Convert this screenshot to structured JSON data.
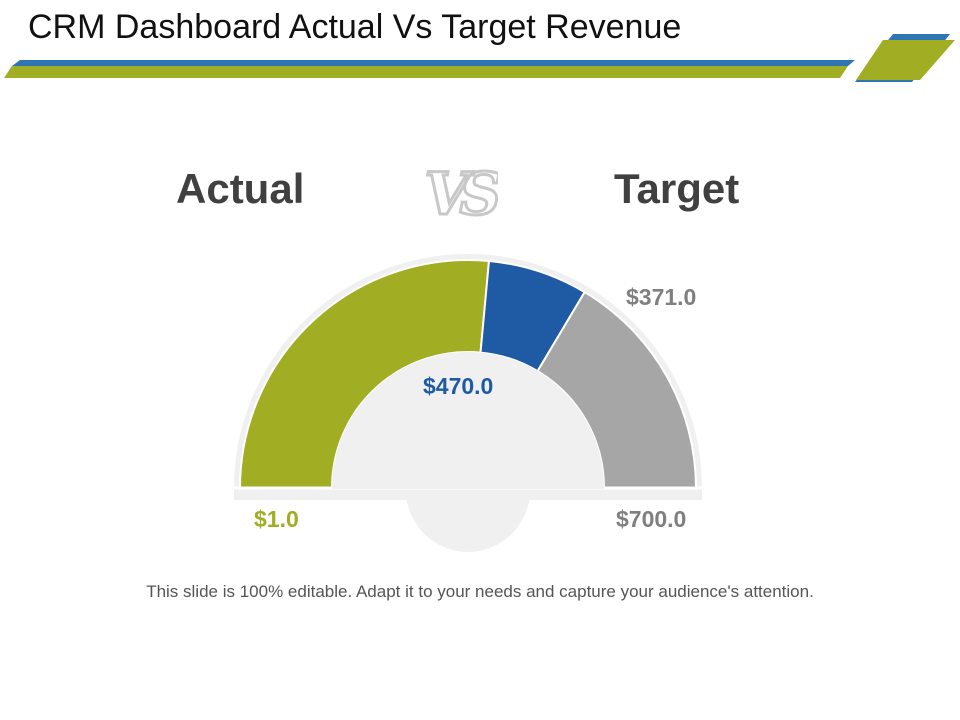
{
  "slide": {
    "title": "CRM Dashboard Actual Vs Target Revenue",
    "footer_text": "This slide is 100% editable. Adapt it to your needs and capture your audience's attention."
  },
  "comparison": {
    "left_label": "Actual",
    "right_label": "Target",
    "separator": "VS"
  },
  "colors": {
    "olive": "#a1ad22",
    "blue": "#1f5ba5",
    "gray": "#a6a6a6",
    "track": "#f0f0f0"
  },
  "chart_data": {
    "type": "gauge",
    "min": 1.0,
    "max": 700.0,
    "min_label": "$1.0",
    "max_label": "$700.0",
    "segments": [
      {
        "value_start": 1.0,
        "value_end": 371.0,
        "color": "#a1ad22"
      },
      {
        "value_start": 371.0,
        "value_end": 470.0,
        "color": "#1f5ba5"
      },
      {
        "value_start": 470.0,
        "value_end": 700.0,
        "color": "#a6a6a6"
      }
    ],
    "markers": [
      {
        "value": 371.0,
        "label": "$371.0"
      },
      {
        "value": 470.0,
        "label": "$470.0"
      }
    ]
  }
}
